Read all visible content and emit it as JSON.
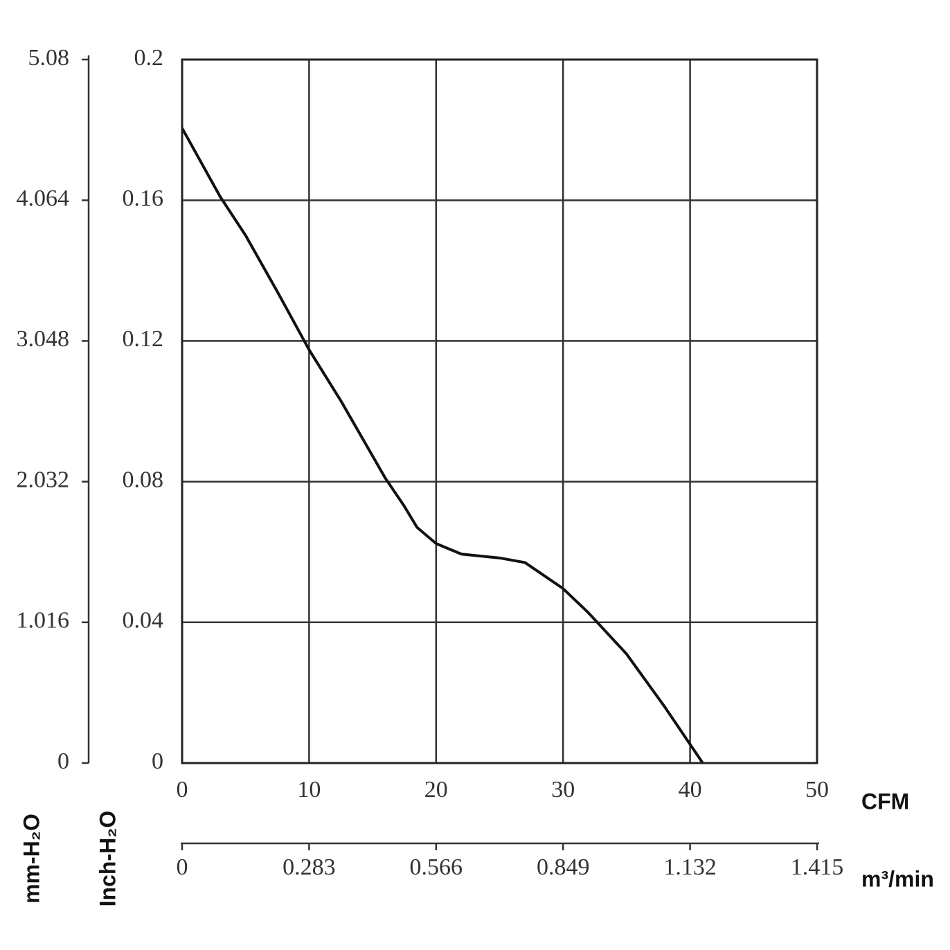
{
  "chart_data": {
    "type": "line",
    "x": [
      0,
      3,
      5,
      7.5,
      10,
      12.5,
      16,
      17.5,
      18.5,
      20,
      22,
      25,
      27,
      30,
      32,
      35,
      38,
      41
    ],
    "series": [
      {
        "name": "Inch-H₂O",
        "color": "#111111",
        "values": [
          0.1805,
          0.161,
          0.15,
          0.134,
          0.1175,
          0.103,
          0.081,
          0.073,
          0.067,
          0.0624,
          0.0594,
          0.0583,
          0.057,
          0.0496,
          0.0427,
          0.031,
          0.016,
          0
        ]
      }
    ],
    "xlabel": "CFM",
    "xlim": [
      0,
      50
    ],
    "xticks": [
      0,
      10,
      20,
      30,
      40,
      50
    ],
    "x2label": "m³/min",
    "x2lim": [
      0,
      1.415
    ],
    "x2ticks": [
      0,
      0.283,
      0.566,
      0.849,
      1.132,
      1.415
    ],
    "ylabel": "Inch-H₂O",
    "ylim": [
      0,
      0.2
    ],
    "yticks": [
      0,
      0.04,
      0.08,
      0.12,
      0.16,
      0.2
    ],
    "y2label": "mm-H₂O",
    "y2lim": [
      0,
      5.08
    ],
    "y2ticks": [
      0,
      1.016,
      2.032,
      3.048,
      4.064,
      5.08
    ],
    "grid": true
  }
}
